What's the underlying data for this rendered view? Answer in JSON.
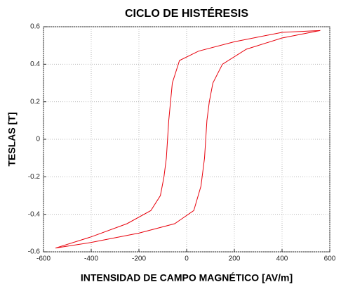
{
  "chart_data": {
    "type": "line",
    "title": "CICLO DE HISTÉRESIS",
    "xlabel": "INTENSIDAD DE CAMPO MAGNÉTICO [AV/m]",
    "ylabel": "TESLAS [T]",
    "x": [
      -550,
      -400,
      -200,
      -50,
      30,
      60,
      75,
      80,
      85,
      95,
      110,
      150,
      250,
      400,
      560,
      400,
      200,
      50,
      -30,
      -60,
      -75,
      -80,
      -85,
      -95,
      -110,
      -150,
      -250,
      -400,
      -550
    ],
    "series": [
      {
        "color": "#e8000b",
        "values": [
          -0.58,
          -0.55,
          -0.5,
          -0.45,
          -0.38,
          -0.25,
          -0.1,
          0,
          0.1,
          0.2,
          0.3,
          0.4,
          0.48,
          0.54,
          0.58,
          0.57,
          0.52,
          0.47,
          0.42,
          0.3,
          0.1,
          0,
          -0.1,
          -0.2,
          -0.3,
          -0.38,
          -0.45,
          -0.52,
          -0.58
        ]
      }
    ],
    "xlim": [
      -600,
      600
    ],
    "xticks": [
      -600,
      -400,
      -200,
      0,
      200,
      400,
      600
    ],
    "ylim": [
      -0.6,
      0.6
    ],
    "yticks": [
      -0.6,
      -0.4,
      -0.2,
      0,
      0.2,
      0.4,
      0.6
    ],
    "grid": true
  }
}
